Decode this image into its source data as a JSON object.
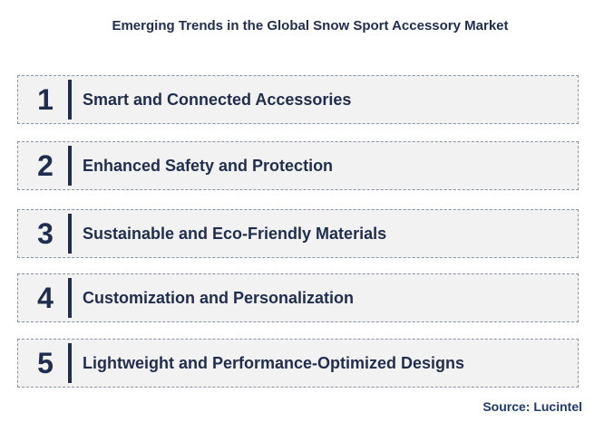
{
  "title": "Emerging Trends in the Global Snow Sport Accessory Market",
  "trends": [
    {
      "number": "1",
      "label": "Smart and Connected Accessories"
    },
    {
      "number": "2",
      "label": "Enhanced Safety and Protection"
    },
    {
      "number": "3",
      "label": "Sustainable and Eco-Friendly Materials"
    },
    {
      "number": "4",
      "label": "Customization and Personalization"
    },
    {
      "number": "5",
      "label": "Lightweight and Performance-Optimized Designs"
    }
  ],
  "source": "Source: Lucintel",
  "colors": {
    "text": "#1f2d4f",
    "row_bg": "#f2f2f2",
    "border": "#8a94a8"
  }
}
